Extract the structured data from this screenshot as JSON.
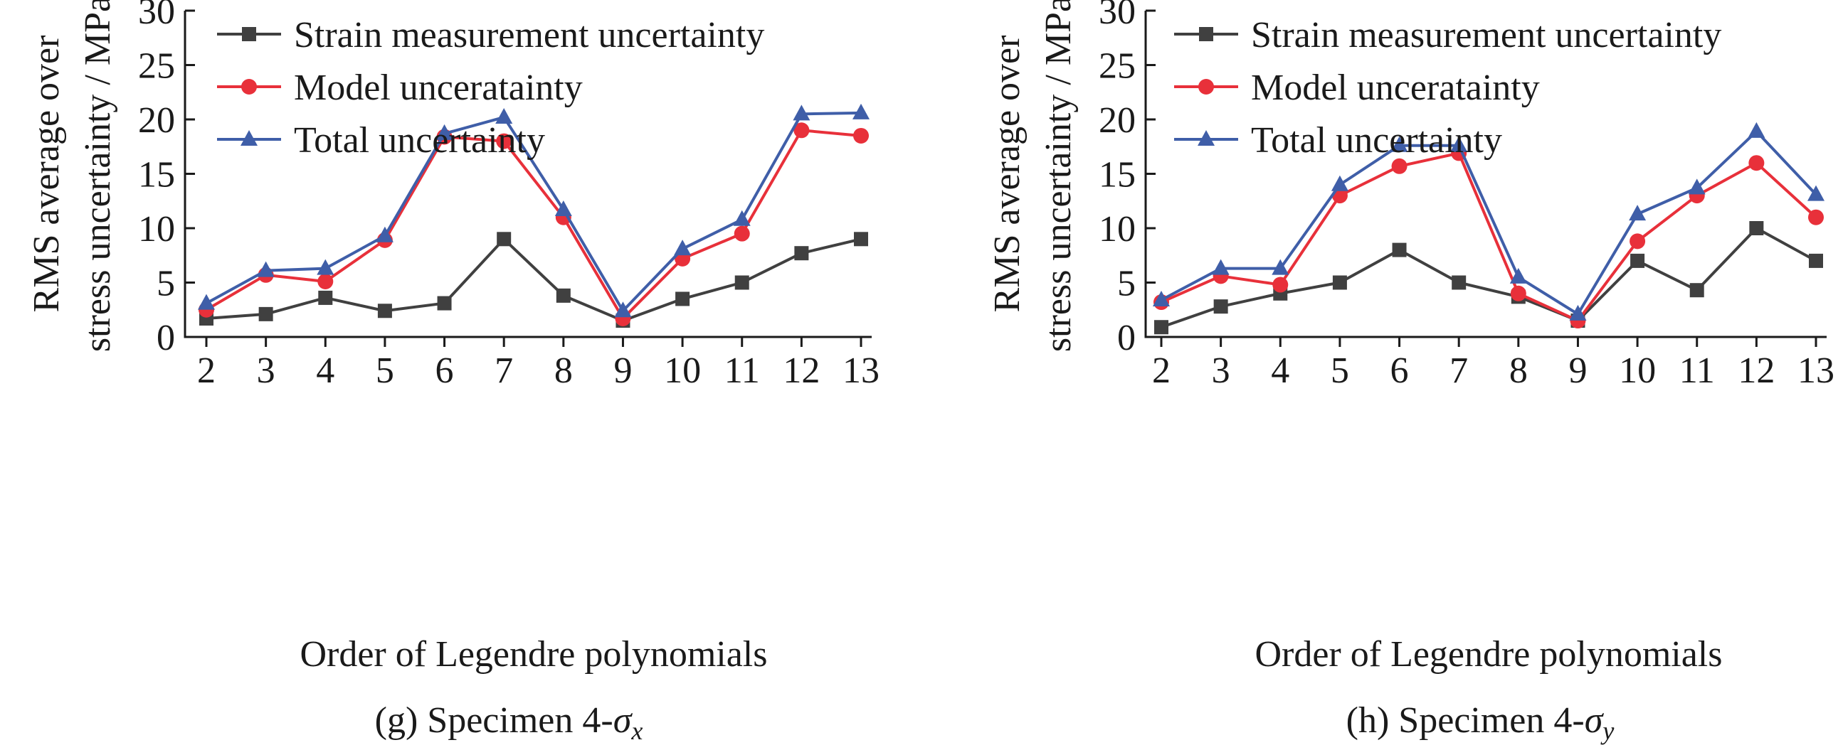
{
  "chart_data": [
    {
      "id": "g",
      "type": "line",
      "caption": {
        "prefix": "(g) Specimen 4-",
        "symbol": "σ",
        "subscript": "x"
      },
      "xlabel": "Order of Legendre polynomials",
      "ylabel_lines": [
        "RMS average over",
        "stress uncertainty / MPa"
      ],
      "x": [
        2,
        3,
        4,
        5,
        6,
        7,
        8,
        9,
        10,
        11,
        12,
        13
      ],
      "x_tick_labels": [
        "2",
        "3",
        "4",
        "5",
        "6",
        "7",
        "8",
        "9",
        "10",
        "11",
        "12",
        "13"
      ],
      "ylim": [
        0,
        30
      ],
      "y_ticks": [
        0,
        5,
        10,
        15,
        20,
        25,
        30
      ],
      "y_tick_labels": [
        "0",
        "5",
        "10",
        "15",
        "20",
        "25",
        "30"
      ],
      "legend_position": "top-left",
      "grid": false,
      "series": [
        {
          "name": "Strain measurement uncertainty",
          "marker": "square",
          "color": "#404040",
          "values": [
            1.7,
            2.1,
            3.6,
            2.4,
            3.1,
            9.0,
            3.8,
            1.5,
            3.5,
            5.0,
            7.7,
            9.0
          ]
        },
        {
          "name": "Model unceratainty",
          "marker": "circle",
          "color": "#e8303a",
          "values": [
            2.5,
            5.7,
            5.1,
            8.9,
            18.4,
            18.0,
            11.0,
            1.7,
            7.2,
            9.5,
            19.0,
            18.5
          ]
        },
        {
          "name": "Total uncertainty",
          "marker": "triangle",
          "color": "#3f5ea8",
          "values": [
            3.1,
            6.1,
            6.3,
            9.3,
            18.7,
            20.2,
            11.7,
            2.4,
            8.1,
            10.8,
            20.5,
            20.6
          ]
        }
      ]
    },
    {
      "id": "h",
      "type": "line",
      "caption": {
        "prefix": "(h) Specimen 4-",
        "symbol": "σ",
        "subscript": "y"
      },
      "xlabel": "Order of Legendre polynomials",
      "ylabel_lines": [
        "RMS average over",
        "stress uncertainty / MPa"
      ],
      "x": [
        2,
        3,
        4,
        5,
        6,
        7,
        8,
        9,
        10,
        11,
        12,
        13
      ],
      "x_tick_labels": [
        "2",
        "3",
        "4",
        "5",
        "6",
        "7",
        "8",
        "9",
        "10",
        "11",
        "12",
        "13"
      ],
      "ylim": [
        0,
        30
      ],
      "y_ticks": [
        0,
        5,
        10,
        15,
        20,
        25,
        30
      ],
      "y_tick_labels": [
        "0",
        "5",
        "10",
        "15",
        "20",
        "25",
        "30"
      ],
      "legend_position": "top-left",
      "grid": false,
      "series": [
        {
          "name": "Strain measurement uncertainty",
          "marker": "square",
          "color": "#404040",
          "values": [
            0.9,
            2.8,
            4.0,
            5.0,
            8.0,
            5.0,
            3.7,
            1.5,
            7.0,
            4.3,
            10.0,
            7.0
          ]
        },
        {
          "name": "Model unceratainty",
          "marker": "circle",
          "color": "#e8303a",
          "values": [
            3.2,
            5.6,
            4.8,
            13.0,
            15.7,
            16.9,
            4.0,
            1.5,
            8.8,
            13.0,
            16.0,
            11.0
          ]
        },
        {
          "name": "Total uncertainty",
          "marker": "triangle",
          "color": "#3f5ea8",
          "values": [
            3.4,
            6.3,
            6.3,
            14.0,
            17.6,
            17.6,
            5.5,
            2.1,
            11.3,
            13.7,
            18.9,
            13.1
          ]
        }
      ]
    }
  ]
}
